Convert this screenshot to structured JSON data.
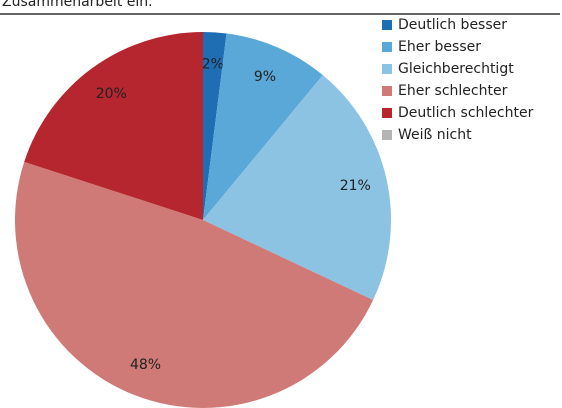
{
  "chart_data": {
    "type": "pie",
    "title": "Zusammenarbeit ein.",
    "categories": [
      "Deutlich besser",
      "Eher besser",
      "Gleichberechtigt",
      "Eher schlechter",
      "Deutlich schlechter",
      "Weiß nicht"
    ],
    "values": [
      2,
      9,
      21,
      48,
      20,
      0
    ],
    "value_labels": [
      "2%",
      "9%",
      "21%",
      "48%",
      "20%",
      null
    ],
    "colors": [
      "#1f6db3",
      "#5aa8d8",
      "#8cc3e3",
      "#d07a78",
      "#b5262e",
      "#b4b4b4"
    ],
    "legend": "right"
  }
}
